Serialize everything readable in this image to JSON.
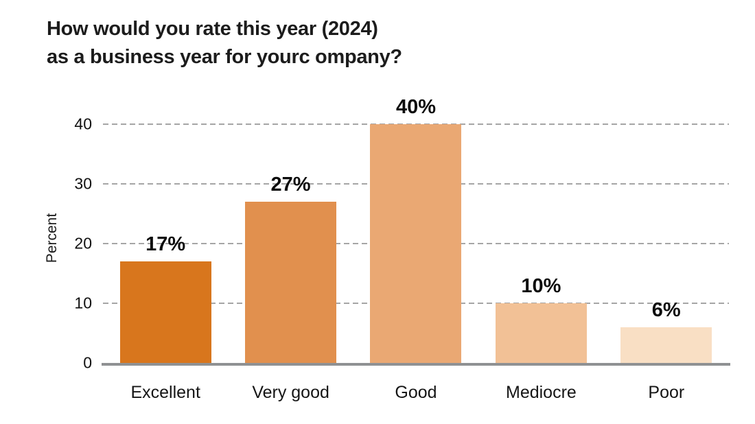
{
  "page": {
    "background": "#ffffff"
  },
  "chart_data": {
    "type": "bar",
    "title": "How would you rate this year (2024)\nas a business year for yourc ompany?",
    "title_lines": [
      "How would you rate this year (2024)",
      "as a business year for yourc ompany?"
    ],
    "xlabel": "",
    "ylabel": "Percent",
    "categories": [
      "Excellent",
      "Very good",
      "Good",
      "Mediocre",
      "Poor"
    ],
    "values": [
      17,
      27,
      40,
      10,
      6
    ],
    "value_labels": [
      "17%",
      "27%",
      "40%",
      "10%",
      "6%"
    ],
    "bar_colors": [
      "#d8761d",
      "#e1904e",
      "#eaa873",
      "#f2c196",
      "#f9dfc4"
    ],
    "yticks": [
      0,
      10,
      20,
      30,
      40
    ],
    "ytick_labels": [
      "0",
      "10",
      "20",
      "30",
      "40"
    ],
    "ylim": [
      0,
      40
    ],
    "grid": "horizontal-dashed",
    "gridline_color": "#a5a5a5",
    "axis_line_color": "#8f9193",
    "legend": "none"
  }
}
